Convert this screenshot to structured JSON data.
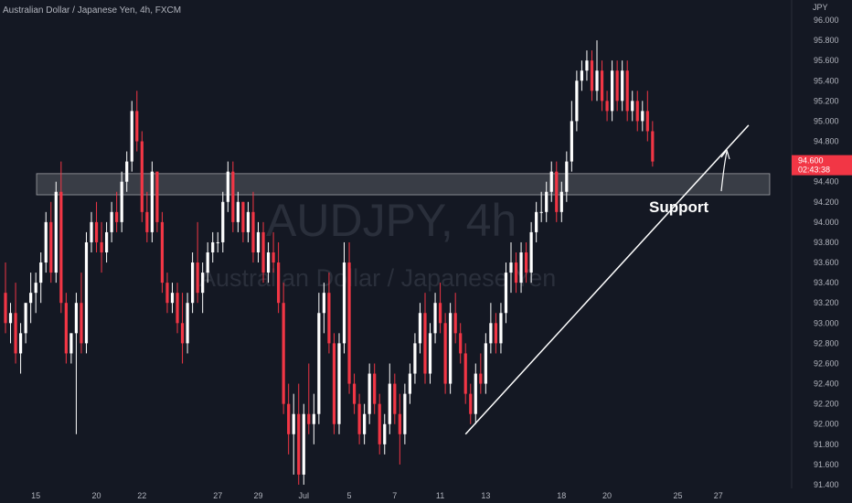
{
  "header": {
    "symbol_line": "Australian Dollar / Japanese Yen, 4h, FXCM",
    "currency": "JPY"
  },
  "watermark": {
    "ticker": "AUDJPY, 4h",
    "name": "Australian Dollar / Japanese Yen"
  },
  "annotation": {
    "support_label": "Support"
  },
  "price_tag": {
    "price": "94.600",
    "countdown": "02:43:38",
    "color": "#f23645"
  },
  "colors": {
    "up": "#ffffff",
    "down": "#f23645",
    "background": "#141823"
  },
  "chart_data": {
    "type": "candlestick",
    "title": "",
    "xlabel": "",
    "ylabel": "JPY",
    "ylim": [
      91.4,
      96.0
    ],
    "y_ticks": [
      "96.000",
      "95.800",
      "95.600",
      "95.400",
      "95.200",
      "95.000",
      "94.800",
      "94.600",
      "94.400",
      "94.200",
      "94.000",
      "93.800",
      "93.600",
      "93.400",
      "93.200",
      "93.000",
      "92.800",
      "92.600",
      "92.400",
      "92.200",
      "92.000",
      "91.800",
      "91.600",
      "91.400"
    ],
    "x_ticks": [
      "15",
      "20",
      "22",
      "27",
      "29",
      "Jul",
      "5",
      "7",
      "11",
      "13",
      "18",
      "20",
      "25",
      "27"
    ],
    "x_tick_index": [
      6,
      18,
      27,
      42,
      50,
      59,
      68,
      77,
      86,
      95,
      110,
      119,
      133,
      141
    ],
    "support_zone": [
      94.27,
      94.48
    ],
    "trendline": {
      "start_index": 91,
      "start_price": 91.9,
      "end_index": 147,
      "end_price": 94.96
    },
    "candles": [
      {
        "o": 93.3,
        "h": 93.6,
        "l": 92.9,
        "c": 93.0
      },
      {
        "o": 93.0,
        "h": 93.2,
        "l": 92.8,
        "c": 93.1
      },
      {
        "o": 93.1,
        "h": 93.4,
        "l": 92.6,
        "c": 92.7
      },
      {
        "o": 92.7,
        "h": 93.0,
        "l": 92.5,
        "c": 92.9
      },
      {
        "o": 92.9,
        "h": 93.2,
        "l": 92.8,
        "c": 93.2
      },
      {
        "o": 93.2,
        "h": 93.5,
        "l": 93.0,
        "c": 93.3
      },
      {
        "o": 93.3,
        "h": 93.5,
        "l": 93.1,
        "c": 93.4
      },
      {
        "o": 93.4,
        "h": 93.7,
        "l": 93.2,
        "c": 93.6
      },
      {
        "o": 93.6,
        "h": 94.1,
        "l": 93.5,
        "c": 94.0
      },
      {
        "o": 94.0,
        "h": 94.2,
        "l": 93.4,
        "c": 93.5
      },
      {
        "o": 93.5,
        "h": 94.4,
        "l": 93.4,
        "c": 94.3
      },
      {
        "o": 94.3,
        "h": 94.6,
        "l": 93.1,
        "c": 93.2
      },
      {
        "o": 93.2,
        "h": 93.3,
        "l": 92.6,
        "c": 92.7
      },
      {
        "o": 92.7,
        "h": 92.9,
        "l": 92.6,
        "c": 92.9
      },
      {
        "o": 92.9,
        "h": 93.3,
        "l": 91.9,
        "c": 93.2
      },
      {
        "o": 93.2,
        "h": 93.5,
        "l": 92.7,
        "c": 92.8
      },
      {
        "o": 92.8,
        "h": 93.9,
        "l": 92.7,
        "c": 93.8
      },
      {
        "o": 93.8,
        "h": 94.1,
        "l": 93.7,
        "c": 94.0
      },
      {
        "o": 94.0,
        "h": 94.2,
        "l": 93.7,
        "c": 93.8
      },
      {
        "o": 93.8,
        "h": 94.0,
        "l": 93.5,
        "c": 93.7
      },
      {
        "o": 93.7,
        "h": 94.0,
        "l": 93.6,
        "c": 93.9
      },
      {
        "o": 93.9,
        "h": 94.2,
        "l": 93.8,
        "c": 94.1
      },
      {
        "o": 94.1,
        "h": 94.3,
        "l": 93.9,
        "c": 94.0
      },
      {
        "o": 94.0,
        "h": 94.5,
        "l": 93.9,
        "c": 94.4
      },
      {
        "o": 94.4,
        "h": 94.7,
        "l": 94.3,
        "c": 94.6
      },
      {
        "o": 94.6,
        "h": 95.2,
        "l": 94.5,
        "c": 95.1
      },
      {
        "o": 95.1,
        "h": 95.3,
        "l": 94.7,
        "c": 94.8
      },
      {
        "o": 94.8,
        "h": 94.9,
        "l": 94.0,
        "c": 94.1
      },
      {
        "o": 94.1,
        "h": 94.3,
        "l": 93.8,
        "c": 93.9
      },
      {
        "o": 93.9,
        "h": 94.6,
        "l": 93.8,
        "c": 94.5
      },
      {
        "o": 94.5,
        "h": 94.5,
        "l": 93.9,
        "c": 94.0
      },
      {
        "o": 94.0,
        "h": 94.1,
        "l": 93.3,
        "c": 93.4
      },
      {
        "o": 93.4,
        "h": 93.5,
        "l": 93.1,
        "c": 93.2
      },
      {
        "o": 93.2,
        "h": 93.4,
        "l": 93.1,
        "c": 93.3
      },
      {
        "o": 93.3,
        "h": 93.4,
        "l": 92.9,
        "c": 93.0
      },
      {
        "o": 93.0,
        "h": 93.3,
        "l": 92.6,
        "c": 92.8
      },
      {
        "o": 92.8,
        "h": 93.3,
        "l": 92.7,
        "c": 93.2
      },
      {
        "o": 93.2,
        "h": 93.7,
        "l": 93.1,
        "c": 93.6
      },
      {
        "o": 93.6,
        "h": 94.0,
        "l": 93.2,
        "c": 93.3
      },
      {
        "o": 93.3,
        "h": 93.6,
        "l": 93.1,
        "c": 93.5
      },
      {
        "o": 93.5,
        "h": 93.8,
        "l": 93.4,
        "c": 93.7
      },
      {
        "o": 93.7,
        "h": 93.9,
        "l": 93.6,
        "c": 93.8
      },
      {
        "o": 93.8,
        "h": 93.9,
        "l": 93.7,
        "c": 93.8
      },
      {
        "o": 93.8,
        "h": 94.3,
        "l": 93.7,
        "c": 94.2
      },
      {
        "o": 94.2,
        "h": 94.6,
        "l": 94.1,
        "c": 94.5
      },
      {
        "o": 94.5,
        "h": 94.6,
        "l": 93.9,
        "c": 94.0
      },
      {
        "o": 94.0,
        "h": 94.3,
        "l": 93.9,
        "c": 94.2
      },
      {
        "o": 94.2,
        "h": 94.2,
        "l": 93.8,
        "c": 93.9
      },
      {
        "o": 93.9,
        "h": 94.2,
        "l": 93.8,
        "c": 94.1
      },
      {
        "o": 94.1,
        "h": 94.3,
        "l": 93.6,
        "c": 93.7
      },
      {
        "o": 93.7,
        "h": 94.0,
        "l": 93.6,
        "c": 93.9
      },
      {
        "o": 93.9,
        "h": 94.0,
        "l": 93.4,
        "c": 93.5
      },
      {
        "o": 93.5,
        "h": 93.8,
        "l": 93.4,
        "c": 93.7
      },
      {
        "o": 93.7,
        "h": 93.9,
        "l": 93.5,
        "c": 93.6
      },
      {
        "o": 93.6,
        "h": 93.8,
        "l": 93.1,
        "c": 93.2
      },
      {
        "o": 93.2,
        "h": 93.4,
        "l": 92.1,
        "c": 92.2
      },
      {
        "o": 92.2,
        "h": 92.4,
        "l": 91.7,
        "c": 91.9
      },
      {
        "o": 91.9,
        "h": 92.3,
        "l": 91.5,
        "c": 92.1
      },
      {
        "o": 92.1,
        "h": 92.4,
        "l": 91.4,
        "c": 91.5
      },
      {
        "o": 91.5,
        "h": 92.2,
        "l": 91.4,
        "c": 92.1
      },
      {
        "o": 92.1,
        "h": 92.6,
        "l": 91.9,
        "c": 92.0
      },
      {
        "o": 92.0,
        "h": 92.3,
        "l": 91.8,
        "c": 92.1
      },
      {
        "o": 92.1,
        "h": 93.3,
        "l": 92.0,
        "c": 93.1
      },
      {
        "o": 93.1,
        "h": 93.4,
        "l": 92.9,
        "c": 93.3
      },
      {
        "o": 93.3,
        "h": 93.5,
        "l": 92.7,
        "c": 92.8
      },
      {
        "o": 92.8,
        "h": 92.9,
        "l": 91.9,
        "c": 92.0
      },
      {
        "o": 92.0,
        "h": 92.9,
        "l": 91.9,
        "c": 92.8
      },
      {
        "o": 92.8,
        "h": 93.8,
        "l": 92.7,
        "c": 93.6
      },
      {
        "o": 93.6,
        "h": 93.8,
        "l": 92.3,
        "c": 92.4
      },
      {
        "o": 92.4,
        "h": 92.5,
        "l": 92.1,
        "c": 92.2
      },
      {
        "o": 92.2,
        "h": 92.3,
        "l": 91.8,
        "c": 91.9
      },
      {
        "o": 91.9,
        "h": 92.2,
        "l": 91.8,
        "c": 92.1
      },
      {
        "o": 92.1,
        "h": 92.6,
        "l": 92.0,
        "c": 92.5
      },
      {
        "o": 92.5,
        "h": 92.6,
        "l": 92.1,
        "c": 92.2
      },
      {
        "o": 92.2,
        "h": 92.3,
        "l": 91.7,
        "c": 91.8
      },
      {
        "o": 91.8,
        "h": 92.1,
        "l": 91.7,
        "c": 92.0
      },
      {
        "o": 92.0,
        "h": 92.6,
        "l": 91.9,
        "c": 92.4
      },
      {
        "o": 92.4,
        "h": 92.5,
        "l": 92.0,
        "c": 92.1
      },
      {
        "o": 92.1,
        "h": 92.3,
        "l": 91.6,
        "c": 91.9
      },
      {
        "o": 91.9,
        "h": 92.4,
        "l": 91.8,
        "c": 92.3
      },
      {
        "o": 92.3,
        "h": 92.6,
        "l": 92.2,
        "c": 92.5
      },
      {
        "o": 92.5,
        "h": 92.9,
        "l": 92.4,
        "c": 92.8
      },
      {
        "o": 92.8,
        "h": 93.2,
        "l": 92.7,
        "c": 93.1
      },
      {
        "o": 93.1,
        "h": 93.3,
        "l": 92.4,
        "c": 92.5
      },
      {
        "o": 92.5,
        "h": 93.0,
        "l": 92.4,
        "c": 92.9
      },
      {
        "o": 92.9,
        "h": 93.3,
        "l": 92.8,
        "c": 93.2
      },
      {
        "o": 93.2,
        "h": 93.4,
        "l": 92.9,
        "c": 93.0
      },
      {
        "o": 93.0,
        "h": 93.1,
        "l": 92.3,
        "c": 92.4
      },
      {
        "o": 92.4,
        "h": 93.2,
        "l": 92.3,
        "c": 93.1
      },
      {
        "o": 93.1,
        "h": 93.3,
        "l": 92.8,
        "c": 92.9
      },
      {
        "o": 92.9,
        "h": 93.0,
        "l": 92.6,
        "c": 92.7
      },
      {
        "o": 92.7,
        "h": 92.8,
        "l": 92.2,
        "c": 92.3
      },
      {
        "o": 92.3,
        "h": 92.4,
        "l": 92.0,
        "c": 92.1
      },
      {
        "o": 92.1,
        "h": 92.6,
        "l": 92.0,
        "c": 92.5
      },
      {
        "o": 92.5,
        "h": 92.7,
        "l": 92.3,
        "c": 92.4
      },
      {
        "o": 92.4,
        "h": 92.9,
        "l": 92.3,
        "c": 92.8
      },
      {
        "o": 92.8,
        "h": 93.2,
        "l": 92.7,
        "c": 93.0
      },
      {
        "o": 93.0,
        "h": 93.1,
        "l": 92.7,
        "c": 92.8
      },
      {
        "o": 92.8,
        "h": 93.2,
        "l": 92.7,
        "c": 93.1
      },
      {
        "o": 93.1,
        "h": 93.6,
        "l": 93.0,
        "c": 93.5
      },
      {
        "o": 93.5,
        "h": 93.8,
        "l": 93.3,
        "c": 93.6
      },
      {
        "o": 93.6,
        "h": 93.7,
        "l": 93.3,
        "c": 93.4
      },
      {
        "o": 93.4,
        "h": 93.8,
        "l": 93.3,
        "c": 93.7
      },
      {
        "o": 93.7,
        "h": 93.8,
        "l": 93.4,
        "c": 93.5
      },
      {
        "o": 93.5,
        "h": 94.0,
        "l": 93.4,
        "c": 93.9
      },
      {
        "o": 93.9,
        "h": 94.2,
        "l": 93.8,
        "c": 94.1
      },
      {
        "o": 94.1,
        "h": 94.3,
        "l": 94.0,
        "c": 94.1
      },
      {
        "o": 94.1,
        "h": 94.4,
        "l": 94.0,
        "c": 94.3
      },
      {
        "o": 94.3,
        "h": 94.6,
        "l": 94.2,
        "c": 94.5
      },
      {
        "o": 94.5,
        "h": 94.6,
        "l": 94.0,
        "c": 94.1
      },
      {
        "o": 94.1,
        "h": 94.4,
        "l": 94.0,
        "c": 94.3
      },
      {
        "o": 94.3,
        "h": 94.7,
        "l": 94.2,
        "c": 94.6
      },
      {
        "o": 94.6,
        "h": 95.2,
        "l": 94.5,
        "c": 95.0
      },
      {
        "o": 95.0,
        "h": 95.5,
        "l": 94.9,
        "c": 95.4
      },
      {
        "o": 95.4,
        "h": 95.6,
        "l": 95.3,
        "c": 95.5
      },
      {
        "o": 95.5,
        "h": 95.7,
        "l": 95.4,
        "c": 95.6
      },
      {
        "o": 95.6,
        "h": 95.7,
        "l": 95.2,
        "c": 95.3
      },
      {
        "o": 95.3,
        "h": 95.8,
        "l": 95.2,
        "c": 95.5
      },
      {
        "o": 95.5,
        "h": 95.6,
        "l": 95.1,
        "c": 95.2
      },
      {
        "o": 95.2,
        "h": 95.3,
        "l": 95.0,
        "c": 95.1
      },
      {
        "o": 95.1,
        "h": 95.6,
        "l": 95.0,
        "c": 95.5
      },
      {
        "o": 95.5,
        "h": 95.6,
        "l": 95.1,
        "c": 95.2
      },
      {
        "o": 95.2,
        "h": 95.6,
        "l": 95.1,
        "c": 95.5
      },
      {
        "o": 95.5,
        "h": 95.6,
        "l": 95.0,
        "c": 95.1
      },
      {
        "o": 95.1,
        "h": 95.3,
        "l": 95.0,
        "c": 95.2
      },
      {
        "o": 95.2,
        "h": 95.3,
        "l": 94.9,
        "c": 95.0
      },
      {
        "o": 95.0,
        "h": 95.2,
        "l": 94.9,
        "c": 95.1
      },
      {
        "o": 95.1,
        "h": 95.3,
        "l": 94.8,
        "c": 94.9
      },
      {
        "o": 94.9,
        "h": 95.0,
        "l": 94.55,
        "c": 94.6
      }
    ]
  }
}
